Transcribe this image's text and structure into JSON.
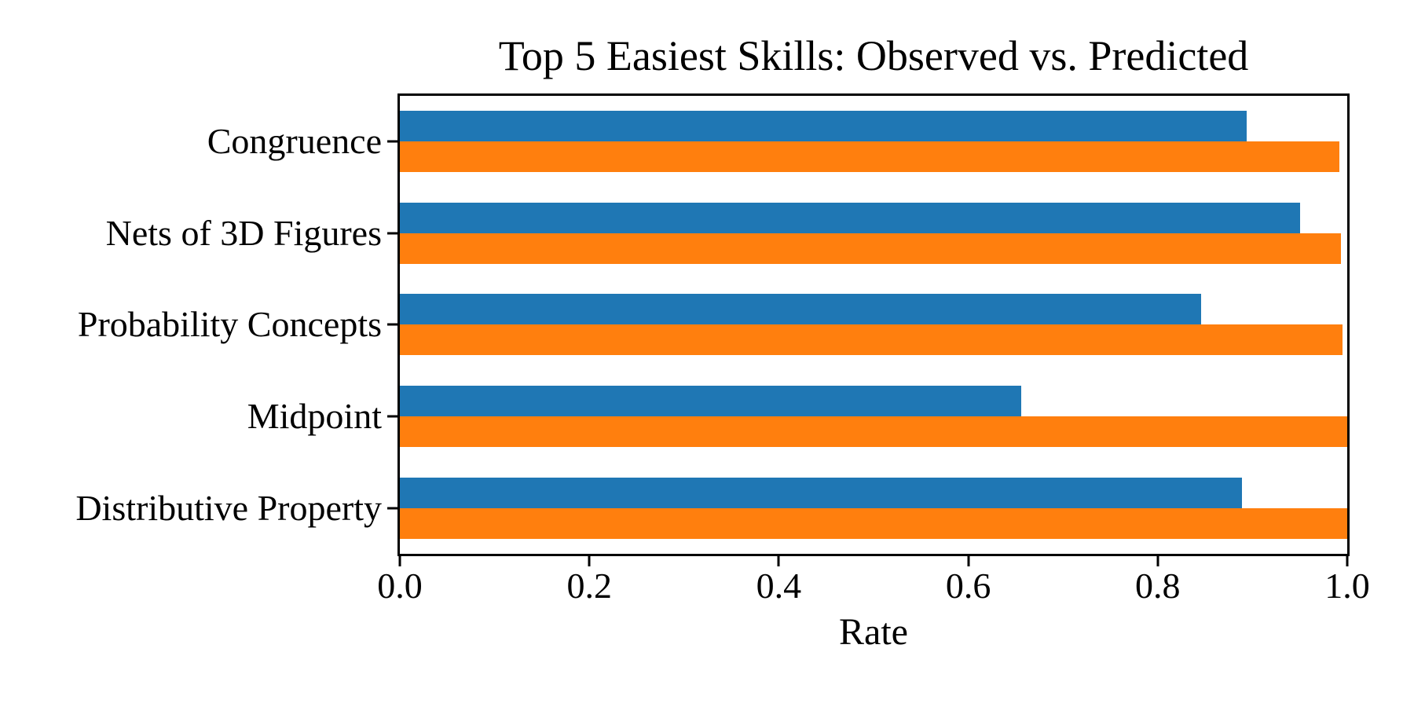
{
  "chart_data": {
    "type": "bar",
    "orientation": "horizontal",
    "title": "Top 5 Easiest Skills: Observed vs. Predicted",
    "xlabel": "Rate",
    "ylabel": "",
    "categories": [
      "Congruence",
      "Nets of 3D Figures",
      "Probability Concepts",
      "Midpoint",
      "Distributive Property"
    ],
    "series": [
      {
        "name": "Observed",
        "color": "#1f77b4",
        "values": [
          0.894,
          0.95,
          0.846,
          0.656,
          0.889
        ]
      },
      {
        "name": "Predicted",
        "color": "#ff7f0e",
        "values": [
          0.992,
          0.993,
          0.995,
          1.0,
          1.0
        ]
      }
    ],
    "xlim": [
      0.0,
      1.0
    ],
    "xticks": [
      "0.0",
      "0.2",
      "0.4",
      "0.6",
      "0.8",
      "1.0"
    ],
    "grid": false,
    "legend_position": "none"
  }
}
